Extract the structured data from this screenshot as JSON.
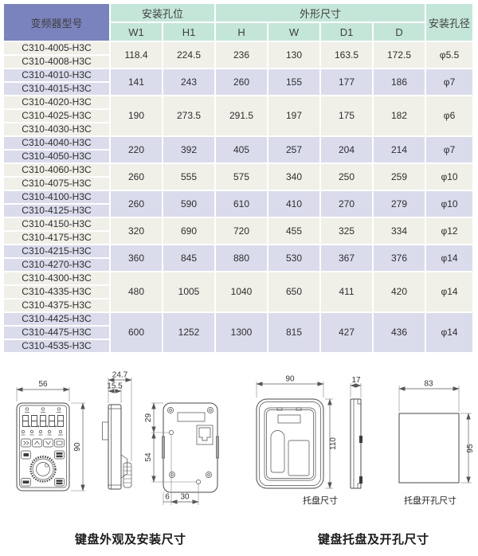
{
  "colors": {
    "header_purple": "#7a83bd",
    "header_green": "#c4e6d9",
    "row_beige": "#f0efe8",
    "row_lavender": "#dadcec"
  },
  "table": {
    "header": {
      "model": "变频器型号",
      "mount_group": "安装孔位",
      "dim_group": "外形尺寸",
      "hole_dia": "安装孔径",
      "cols": [
        "W1",
        "H1",
        "H",
        "W",
        "D1",
        "D"
      ]
    },
    "groups": [
      {
        "shade": "beige",
        "models": [
          "C310-4005-H3C",
          "C310-4008-H3C"
        ],
        "w1": "118.4",
        "h1": "224.5",
        "h": "236",
        "w": "130",
        "d1": "163.5",
        "d": "172.5",
        "dia": "φ5.5"
      },
      {
        "shade": "lavender",
        "models": [
          "C310-4010-H3C",
          "C310-4015-H3C"
        ],
        "w1": "141",
        "h1": "243",
        "h": "260",
        "w": "155",
        "d1": "177",
        "d": "186",
        "dia": "φ7"
      },
      {
        "shade": "beige",
        "models": [
          "C310-4020-H3C",
          "C310-4025-H3C",
          "C310-4030-H3C"
        ],
        "w1": "190",
        "h1": "273.5",
        "h": "291.5",
        "w": "197",
        "d1": "175",
        "d": "182",
        "dia": "φ6"
      },
      {
        "shade": "lavender",
        "models": [
          "C310-4040-H3C",
          "C310-4050-H3C"
        ],
        "w1": "220",
        "h1": "392",
        "h": "405",
        "w": "257",
        "d1": "204",
        "d": "214",
        "dia": "φ7"
      },
      {
        "shade": "beige",
        "models": [
          "C310-4060-H3C",
          "C310-4075-H3C"
        ],
        "w1": "260",
        "h1": "555",
        "h": "575",
        "w": "340",
        "d1": "250",
        "d": "259",
        "dia": "φ10"
      },
      {
        "shade": "lavender",
        "models": [
          "C310-4100-H3C",
          "C310-4125-H3C"
        ],
        "w1": "260",
        "h1": "590",
        "h": "610",
        "w": "410",
        "d1": "270",
        "d": "279",
        "dia": "φ10"
      },
      {
        "shade": "beige",
        "models": [
          "C310-4150-H3C",
          "C310-4175-H3C"
        ],
        "w1": "320",
        "h1": "690",
        "h": "720",
        "w": "455",
        "d1": "325",
        "d": "334",
        "dia": "φ12"
      },
      {
        "shade": "lavender",
        "models": [
          "C310-4215-H3C",
          "C310-4270-H3C"
        ],
        "w1": "360",
        "h1": "845",
        "h": "880",
        "w": "530",
        "d1": "367",
        "d": "376",
        "dia": "φ14"
      },
      {
        "shade": "beige",
        "models": [
          "C310-4300-H3C",
          "C310-4335-H3C",
          "C310-4375-H3C"
        ],
        "w1": "480",
        "h1": "1005",
        "h": "1040",
        "w": "650",
        "d1": "411",
        "d": "420",
        "dia": "φ14"
      },
      {
        "shade": "lavender",
        "models": [
          "C310-4425-H3C",
          "C310-4475-H3C",
          "C310-4535-H3C"
        ],
        "w1": "600",
        "h1": "1252",
        "h": "1300",
        "w": "815",
        "d1": "427",
        "d": "436",
        "dia": "φ14"
      }
    ]
  },
  "drawings": {
    "keypad": {
      "width": "56",
      "height": "90",
      "depth_total": "24.7",
      "depth_body": "15.5",
      "hole_top": "29",
      "hole_span_v": "54",
      "hole_off": "6",
      "hole_span_h": "30"
    },
    "tray": {
      "width": "90",
      "height": "110",
      "depth": "17",
      "label": "托盘尺寸"
    },
    "cutout": {
      "width": "83",
      "height": "95",
      "label": "托盘开孔尺寸"
    }
  },
  "captions": {
    "keypad": "键盘外观及安装尺寸",
    "tray": "键盘托盘及开孔尺寸"
  }
}
